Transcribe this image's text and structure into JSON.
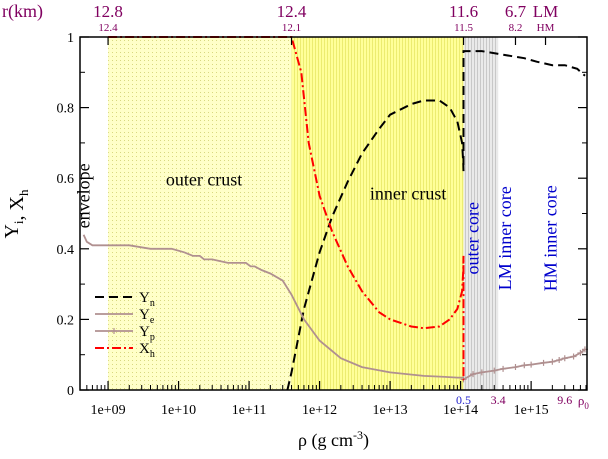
{
  "chart_data": {
    "type": "line",
    "x_scale": "log",
    "xlim": [
      400000000,
      6200000000000000.0
    ],
    "ylim": [
      0,
      1
    ],
    "xlabel_base": "ρ (g cm",
    "xlabel_exp": "-3",
    "xlabel_end": ")",
    "ylabel": "Y",
    "ylabel_parts": [
      {
        "t": "Y",
        "sub": "i"
      },
      {
        "t": ", X",
        "sub": "h"
      }
    ],
    "x_ticks": [
      {
        "x": 1000000000.0,
        "label": "1e+09"
      },
      {
        "x": 10000000000.0,
        "label": "1e+10"
      },
      {
        "x": 100000000000.0,
        "label": "1e+11"
      },
      {
        "x": 1000000000000.0,
        "label": "1e+12"
      },
      {
        "x": 10000000000000.0,
        "label": "1e+13"
      },
      {
        "x": 100000000000000.0,
        "label": "1e+14"
      },
      {
        "x": 1000000000000000.0,
        "label": "1e+15"
      }
    ],
    "y_ticks": [
      {
        "y": 0,
        "label": "0"
      },
      {
        "y": 0.2,
        "label": "0.2"
      },
      {
        "y": 0.4,
        "label": "0.4"
      },
      {
        "y": 0.6,
        "label": "0.6"
      },
      {
        "y": 0.8,
        "label": "0.8"
      },
      {
        "y": 1,
        "label": "1"
      }
    ],
    "top_axis": {
      "title": "r(km)",
      "major": [
        {
          "x": 1000000000.0,
          "label": "12.8"
        },
        {
          "x": 400000000000.0,
          "label": "12.4"
        },
        {
          "x": 110000000000000.0,
          "label": "11.6"
        },
        {
          "x": 600000000000000.0,
          "label": "6.7"
        },
        {
          "x": 1600000000000000.0,
          "label": "LM"
        }
      ],
      "minor": [
        {
          "x": 1000000000.0,
          "label": "12.4"
        },
        {
          "x": 400000000000.0,
          "label": "12.1"
        },
        {
          "x": 110000000000000.0,
          "label": "11.5"
        },
        {
          "x": 600000000000000.0,
          "label": "8.2"
        },
        {
          "x": 1600000000000000.0,
          "label": "HM"
        }
      ]
    },
    "density_marks": [
      {
        "x": 110000000000000.0,
        "label": "0.5"
      },
      {
        "x": 340000000000000.0,
        "label": "3.4"
      },
      {
        "x": 3000000000000000.0,
        "label": "9.6"
      },
      {
        "x": 5500000000000000.0,
        "label": "ρ",
        "sub": "0"
      }
    ],
    "regions": [
      {
        "name": "outer crust",
        "from": 1000000000.0,
        "to": 400000000000.0,
        "color": "#ffffc8"
      },
      {
        "name": "inner crust",
        "from": 400000000000.0,
        "to": 110000000000000.0,
        "color": "#ffff99"
      },
      {
        "name": "outer core",
        "from": 110000000000000.0,
        "to": 340000000000000.0,
        "color": "#dcdcdc"
      }
    ],
    "region_labels": [
      {
        "text": "envelope",
        "x": 550000000.0,
        "y": 0.55,
        "rotate": true,
        "color": "#000000"
      },
      {
        "text": "outer crust",
        "x": 23000000000.0,
        "y": 0.58,
        "rotate": false,
        "color": "#000000"
      },
      {
        "text": "inner crust",
        "x": 18000000000000.0,
        "y": 0.54,
        "rotate": false,
        "color": "#000000"
      },
      {
        "text": "outer core",
        "x": 180000000000000.0,
        "y": 0.43,
        "rotate": true,
        "color": "#0000cd"
      },
      {
        "text": "LM  inner core",
        "x": 520000000000000.0,
        "y": 0.43,
        "rotate": true,
        "color": "#0000cd"
      },
      {
        "text": "HM  inner core",
        "x": 2300000000000000.0,
        "y": 0.43,
        "rotate": true,
        "color": "#0000cd"
      }
    ],
    "series": [
      {
        "name": "Y",
        "name_sub": "n",
        "color": "#000000",
        "dash": "9,5",
        "x": [
          350000000000.0,
          400000000000.0,
          600000000000.0,
          1000000000000.0,
          1500000000000.0,
          2500000000000.0,
          4000000000000.0,
          7000000000000.0,
          10000000000000.0,
          20000000000000.0,
          30000000000000.0,
          50000000000000.0,
          70000000000000.0,
          90000000000000.0,
          105000000000000.0,
          109000000000000.0,
          110000000000000.0,
          110000000000000.0,
          200000000000000.0,
          400000000000000.0,
          800000000000000.0,
          1200000000000000.0,
          2000000000000000.0,
          3000000000000000.0,
          4500000000000000.0,
          5800000000000000.0
        ],
        "y": [
          0,
          0.05,
          0.23,
          0.39,
          0.49,
          0.59,
          0.67,
          0.74,
          0.78,
          0.81,
          0.82,
          0.82,
          0.8,
          0.76,
          0.7,
          0.64,
          0.62,
          0.96,
          0.96,
          0.95,
          0.94,
          0.93,
          0.92,
          0.92,
          0.91,
          0.89
        ]
      },
      {
        "name": "Y",
        "name_sub": "e",
        "color": "#b09090",
        "dash": "",
        "x": [
          450000000.0,
          500000000.0,
          600000000.0,
          800000000.0,
          1000000000.0,
          2000000000.0,
          4000000000.0,
          8000000000.0,
          12000000000.0,
          16000000000.0,
          20000000000.0,
          23000000000.0,
          30000000000.0,
          50000000000.0,
          70000000000.0,
          90000000000.0,
          105000000000.0,
          120000000000.0,
          150000000000.0,
          200000000000.0,
          300000000000.0,
          400000000000.0,
          600000000000.0,
          1000000000000.0,
          2000000000000.0,
          4000000000000.0,
          10000000000000.0,
          30000000000000.0,
          60000000000000.0,
          90000000000000.0,
          110000000000000.0
        ],
        "y": [
          0.44,
          0.42,
          0.41,
          0.41,
          0.41,
          0.41,
          0.4,
          0.4,
          0.39,
          0.38,
          0.38,
          0.37,
          0.37,
          0.36,
          0.36,
          0.36,
          0.35,
          0.35,
          0.34,
          0.33,
          0.31,
          0.27,
          0.2,
          0.14,
          0.09,
          0.065,
          0.05,
          0.04,
          0.037,
          0.035,
          0.035
        ]
      },
      {
        "name": "Y",
        "name_sub": "p",
        "color": "#b09090",
        "dash": "",
        "markers": true,
        "x": [
          110000000000000.0,
          150000000000000.0,
          200000000000000.0,
          300000000000000.0,
          400000000000000.0,
          600000000000000.0,
          800000000000000.0,
          1000000000000000.0,
          1500000000000000.0,
          2000000000000000.0,
          2500000000000000.0,
          3000000000000000.0,
          4000000000000000.0,
          5000000000000000.0,
          5800000000000000.0
        ],
        "y": [
          0.03,
          0.045,
          0.05,
          0.055,
          0.06,
          0.065,
          0.07,
          0.072,
          0.077,
          0.08,
          0.085,
          0.09,
          0.095,
          0.105,
          0.115
        ]
      },
      {
        "name": "X",
        "name_sub": "h",
        "color": "#ff0000",
        "dash": "9,3,2,3",
        "x": [
          1000000000.0,
          10000000000.0,
          100000000000.0,
          400000000000.0,
          550000000000.0,
          700000000000.0,
          1000000000000.0,
          1500000000000.0,
          2500000000000.0,
          4000000000000.0,
          7000000000000.0,
          10000000000000.0,
          20000000000000.0,
          30000000000000.0,
          50000000000000.0,
          70000000000000.0,
          90000000000000.0,
          105000000000000.0,
          109000000000000.0,
          110000000000000.0,
          110000000000000.0,
          112000000000000.0
        ],
        "y": [
          1,
          1,
          1,
          1,
          0.9,
          0.7,
          0.55,
          0.45,
          0.35,
          0.28,
          0.22,
          0.2,
          0.18,
          0.175,
          0.18,
          0.2,
          0.23,
          0.28,
          0.34,
          0.38,
          0.03,
          0.03
        ]
      }
    ],
    "legend_position": "bottom-left"
  }
}
